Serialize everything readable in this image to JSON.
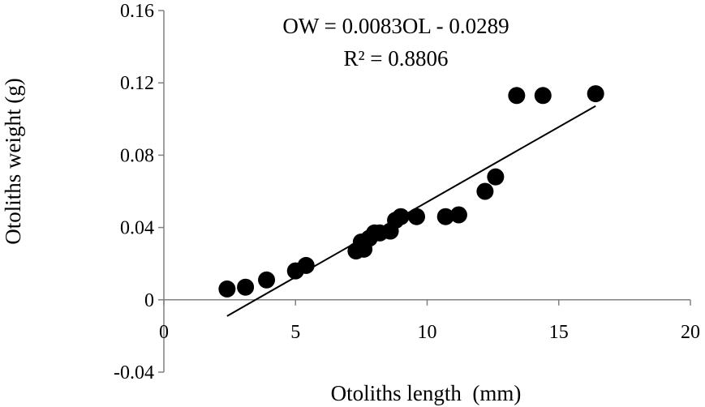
{
  "chart_data": {
    "type": "scatter",
    "xlabel": "Otoliths length  (mm)",
    "ylabel": "Otoliths weight (g)",
    "xlim": [
      0,
      20
    ],
    "ylim": [
      -0.04,
      0.16
    ],
    "x_ticks": [
      "0",
      "5",
      "10",
      "15",
      "20"
    ],
    "y_ticks": [
      "-0.04",
      "0",
      "0.04",
      "0.08",
      "0.12",
      "0.16"
    ],
    "grid": false,
    "marker_color": "#000000",
    "line_color": "#000000",
    "series": [
      {
        "points": [
          [
            2.4,
            0.006
          ],
          [
            3.1,
            0.007
          ],
          [
            3.9,
            0.011
          ],
          [
            5.0,
            0.016
          ],
          [
            5.4,
            0.019
          ],
          [
            7.3,
            0.027
          ],
          [
            7.5,
            0.032
          ],
          [
            7.6,
            0.028
          ],
          [
            7.8,
            0.034
          ],
          [
            8.0,
            0.037
          ],
          [
            8.2,
            0.037
          ],
          [
            8.6,
            0.038
          ],
          [
            8.8,
            0.044
          ],
          [
            9.0,
            0.046
          ],
          [
            9.6,
            0.046
          ],
          [
            10.7,
            0.046
          ],
          [
            11.2,
            0.047
          ],
          [
            12.2,
            0.06
          ],
          [
            12.6,
            0.068
          ],
          [
            13.4,
            0.113
          ],
          [
            14.4,
            0.113
          ],
          [
            16.4,
            0.114
          ]
        ]
      }
    ],
    "trendline": {
      "slope": 0.0083,
      "intercept": -0.0289,
      "x_range": [
        2.4,
        16.4
      ]
    },
    "annotations": {
      "equation": "OW = 0.0083OL - 0.0289",
      "r_squared": "R² = 0.8806"
    }
  }
}
